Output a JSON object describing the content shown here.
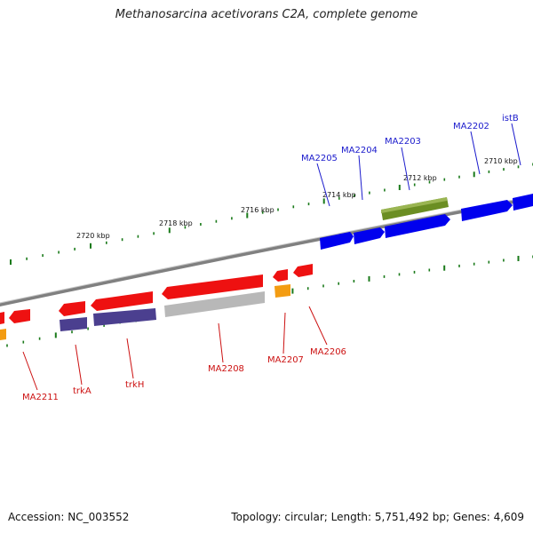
{
  "title": "Methanosarcina acetivorans C2A, complete genome",
  "footer": {
    "accession": "Accession: NC_003552",
    "summary": "Topology: circular; Length: 5,751,492 bp; Genes: 4,609"
  },
  "colors": {
    "backbone": "#808080",
    "tick": "#1a7a1a",
    "forward_gene": "#0000ee",
    "reverse_gene": "#ee1111",
    "other_gene": "#6b8e23",
    "reverse_purple": "#4b3f8f",
    "reverse_grey": "#b8b8b8",
    "orange": "#f39c12",
    "label_blue": "#1a1acc",
    "label_red": "#cc1111"
  },
  "scale_labels": [
    {
      "id": "2720",
      "text": "2720 kbp"
    },
    {
      "id": "2718",
      "text": "2718 kbp"
    },
    {
      "id": "2716",
      "text": "2716 kbp"
    },
    {
      "id": "2714",
      "text": "2714 kbp"
    },
    {
      "id": "2712",
      "text": "2712 kbp"
    },
    {
      "id": "2710",
      "text": "2710 kbp"
    }
  ],
  "forward_genes": [
    {
      "id": "istB",
      "name": "istB"
    },
    {
      "id": "MA2202",
      "name": "MA2202"
    },
    {
      "id": "MA2203",
      "name": "MA2203"
    },
    {
      "id": "MA2204",
      "name": "MA2204"
    },
    {
      "id": "MA2205",
      "name": "MA2205"
    }
  ],
  "reverse_genes": [
    {
      "id": "MA2206",
      "name": "MA2206"
    },
    {
      "id": "MA2207",
      "name": "MA2207"
    },
    {
      "id": "MA2208",
      "name": "MA2208"
    },
    {
      "id": "trkH",
      "name": "trkH"
    },
    {
      "id": "trkA",
      "name": "trkA"
    },
    {
      "id": "MA2211",
      "name": "MA2211"
    }
  ]
}
